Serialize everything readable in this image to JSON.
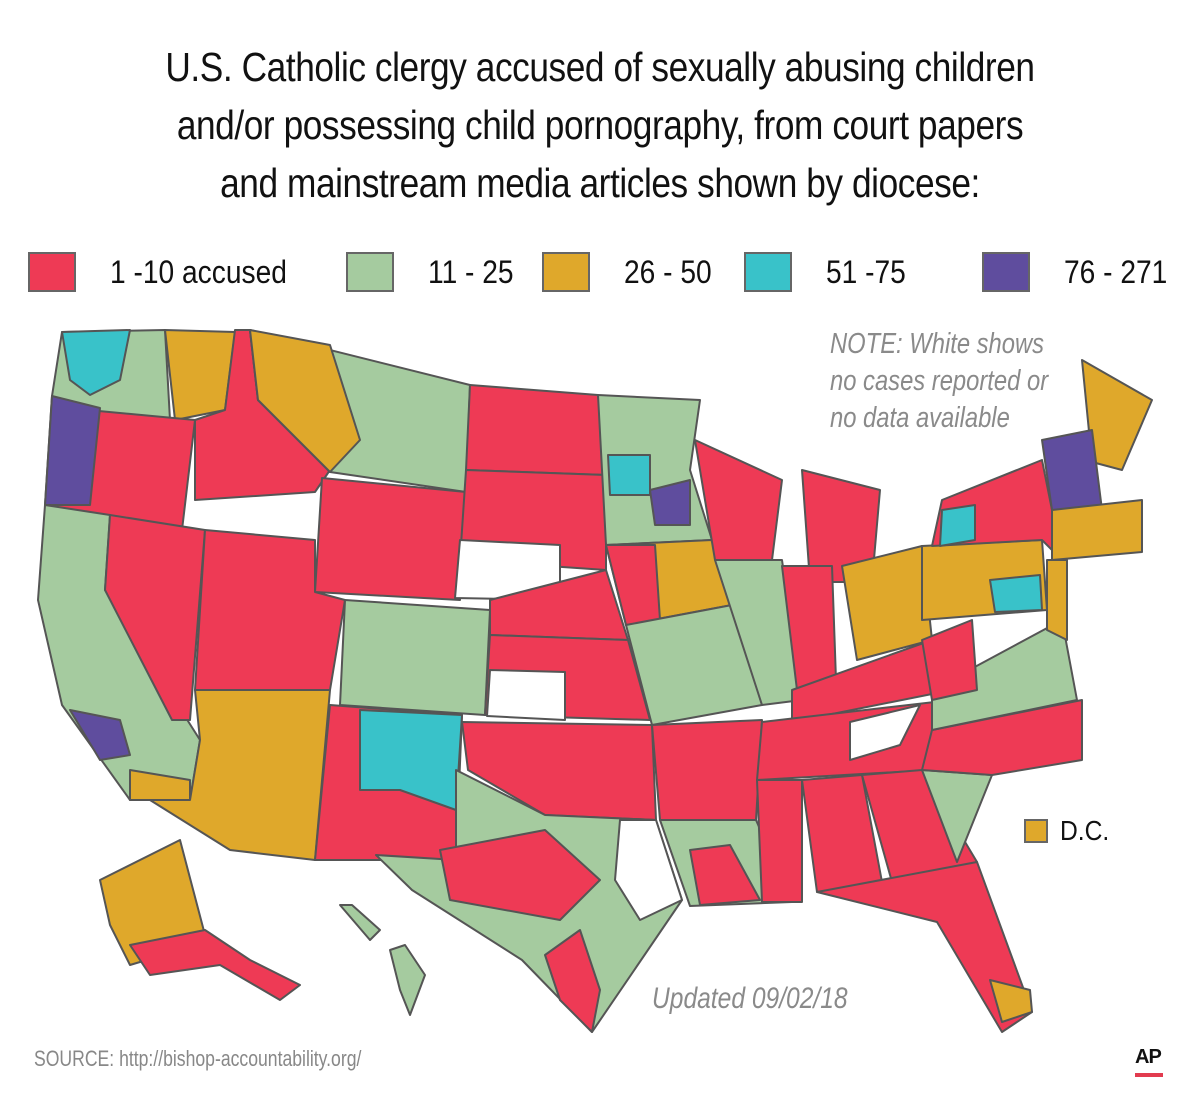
{
  "title_lines": [
    "U.S. Catholic clergy accused of sexually abusing children",
    "and/or possessing child pornography, from court papers",
    "and mainstream media articles shown by diocese:"
  ],
  "legend": [
    {
      "label": "1 -10 accused",
      "color": "#ee3a55"
    },
    {
      "label": "11 - 25",
      "color": "#a5cb9f"
    },
    {
      "label": "26 - 50",
      "color": "#dfa82b"
    },
    {
      "label": "51 -75",
      "color": "#39c2c9"
    },
    {
      "label": "76 - 271",
      "color": "#5f4d9e"
    }
  ],
  "note_lines": [
    "NOTE: White shows",
    "no cases reported or",
    "no data available"
  ],
  "dc_label": "D.C.",
  "dc_color": "#dfa82b",
  "updated": "Updated 09/02/18",
  "source": "SOURCE: http://bishop-accountability.org/",
  "logo": "AP"
}
